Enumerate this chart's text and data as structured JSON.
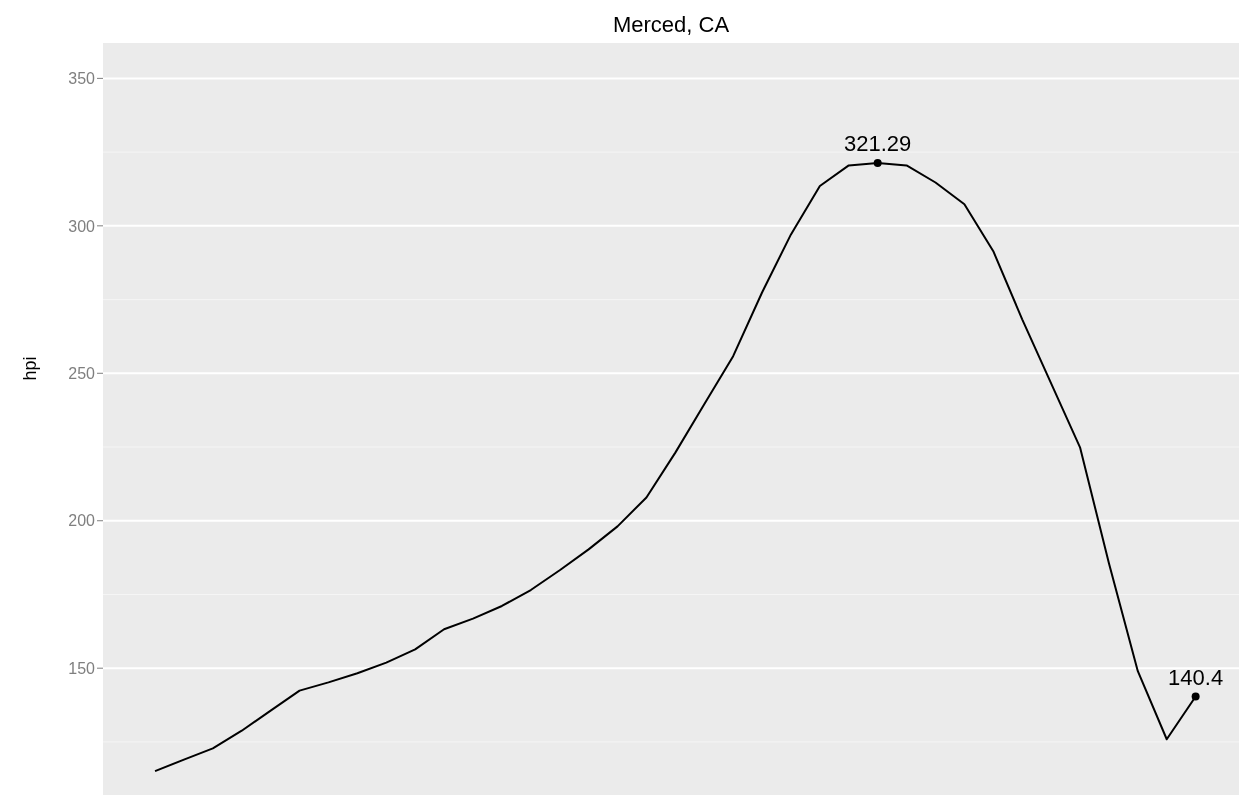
{
  "chart_data": {
    "type": "line",
    "title": "Merced, CA",
    "ylabel": "hpi",
    "categories": [
      null,
      null,
      null,
      null,
      null,
      null,
      null,
      null,
      null,
      null,
      null,
      null,
      null,
      null,
      null,
      null,
      null,
      null,
      null,
      null,
      null,
      null,
      null,
      null,
      null,
      null,
      null,
      null,
      null,
      null,
      null,
      null,
      null,
      null,
      null,
      null,
      null
    ],
    "series": [
      {
        "color": "#000000",
        "values": [
          115.1,
          119.0,
          122.8,
          128.8,
          135.6,
          142.4,
          145.2,
          148.3,
          151.9,
          156.4,
          163.2,
          166.8,
          171.1,
          176.5,
          183.2,
          190.3,
          198.1,
          207.9,
          223.1,
          239.5,
          255.8,
          277.4,
          297.1,
          313.5,
          320.5,
          321.29,
          320.5,
          314.7,
          307.3,
          291.4,
          268.3,
          246.6,
          224.9,
          185.6,
          149.0,
          125.9,
          140.4
        ],
        "value_labels": [
          null,
          null,
          null,
          null,
          null,
          null,
          null,
          null,
          null,
          null,
          null,
          null,
          null,
          null,
          null,
          null,
          null,
          null,
          null,
          null,
          null,
          null,
          null,
          null,
          null,
          "321.29",
          null,
          null,
          null,
          null,
          null,
          null,
          null,
          null,
          null,
          null,
          "140.4"
        ]
      }
    ],
    "ylim": [
      107,
      362
    ],
    "yticks": [
      150,
      200,
      250,
      300,
      350
    ],
    "grid": true,
    "tick_labels": "y"
  }
}
